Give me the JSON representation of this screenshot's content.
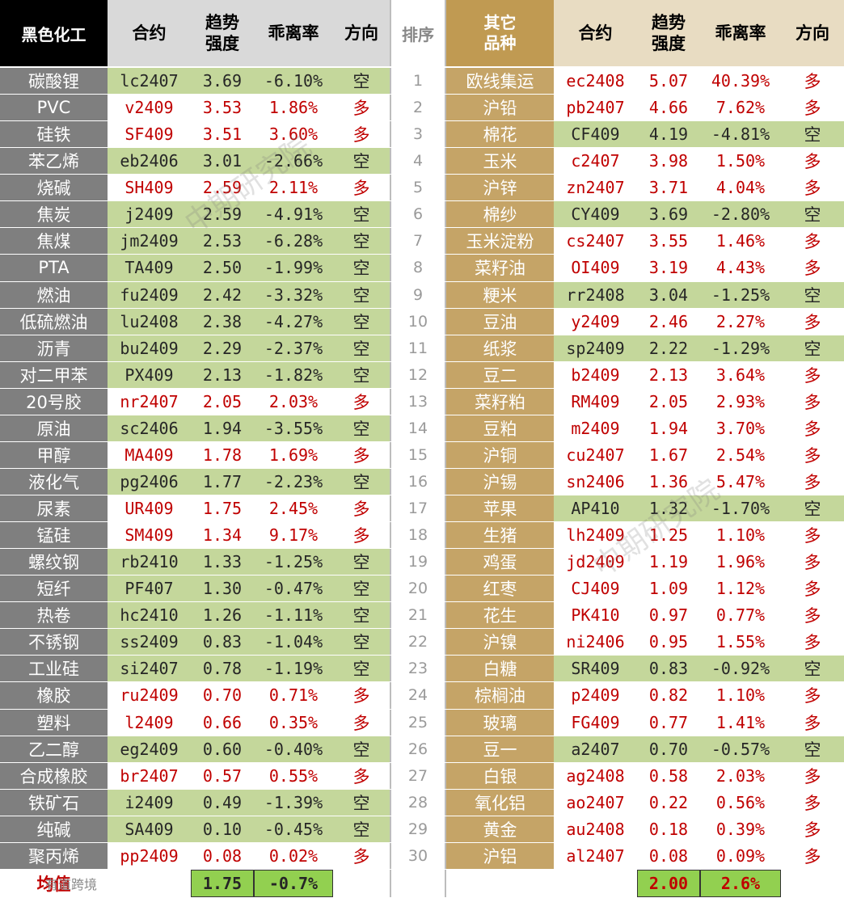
{
  "header": {
    "left_category": "黑色化工",
    "contract": "合约",
    "trend": "趋势\n强度",
    "deviation": "乖离率",
    "direction": "方向",
    "rank": "排序",
    "right_category": "其它\n品种"
  },
  "rows": [
    {
      "l": [
        "碳酸锂",
        "lc2407",
        "3.69",
        "-6.10%",
        "空"
      ],
      "lg": true,
      "rank": "1",
      "r": [
        "欧线集运",
        "ec2408",
        "5.07",
        "40.39%",
        "多"
      ],
      "rg": false
    },
    {
      "l": [
        "PVC",
        "v2409",
        "3.53",
        "1.86%",
        "多"
      ],
      "lg": false,
      "rank": "2",
      "r": [
        "沪铅",
        "pb2407",
        "4.66",
        "7.62%",
        "多"
      ],
      "rg": false
    },
    {
      "l": [
        "硅铁",
        "SF409",
        "3.51",
        "3.60%",
        "多"
      ],
      "lg": false,
      "rank": "3",
      "r": [
        "棉花",
        "CF409",
        "4.19",
        "-4.81%",
        "空"
      ],
      "rg": true
    },
    {
      "l": [
        "苯乙烯",
        "eb2406",
        "3.01",
        "-2.66%",
        "空"
      ],
      "lg": true,
      "rank": "4",
      "r": [
        "玉米",
        "c2407",
        "3.98",
        "1.50%",
        "多"
      ],
      "rg": false
    },
    {
      "l": [
        "烧碱",
        "SH409",
        "2.59",
        "2.11%",
        "多"
      ],
      "lg": false,
      "rank": "5",
      "r": [
        "沪锌",
        "zn2407",
        "3.71",
        "4.04%",
        "多"
      ],
      "rg": false
    },
    {
      "l": [
        "焦炭",
        "j2409",
        "2.59",
        "-4.91%",
        "空"
      ],
      "lg": true,
      "rank": "6",
      "r": [
        "棉纱",
        "CY409",
        "3.69",
        "-2.80%",
        "空"
      ],
      "rg": true
    },
    {
      "l": [
        "焦煤",
        "jm2409",
        "2.53",
        "-6.28%",
        "空"
      ],
      "lg": true,
      "rank": "7",
      "r": [
        "玉米淀粉",
        "cs2407",
        "3.55",
        "1.46%",
        "多"
      ],
      "rg": false
    },
    {
      "l": [
        "PTA",
        "TA409",
        "2.50",
        "-1.99%",
        "空"
      ],
      "lg": true,
      "rank": "8",
      "r": [
        "菜籽油",
        "OI409",
        "3.19",
        "4.43%",
        "多"
      ],
      "rg": false
    },
    {
      "l": [
        "燃油",
        "fu2409",
        "2.42",
        "-3.32%",
        "空"
      ],
      "lg": true,
      "rank": "9",
      "r": [
        "粳米",
        "rr2408",
        "3.04",
        "-1.25%",
        "空"
      ],
      "rg": true
    },
    {
      "l": [
        "低硫燃油",
        "lu2408",
        "2.38",
        "-4.27%",
        "空"
      ],
      "lg": true,
      "rank": "10",
      "r": [
        "豆油",
        "y2409",
        "2.46",
        "2.27%",
        "多"
      ],
      "rg": false
    },
    {
      "l": [
        "沥青",
        "bu2409",
        "2.29",
        "-2.37%",
        "空"
      ],
      "lg": true,
      "rank": "11",
      "r": [
        "纸浆",
        "sp2409",
        "2.22",
        "-1.29%",
        "空"
      ],
      "rg": true
    },
    {
      "l": [
        "对二甲苯",
        "PX409",
        "2.13",
        "-1.82%",
        "空"
      ],
      "lg": true,
      "rank": "12",
      "r": [
        "豆二",
        "b2409",
        "2.13",
        "3.64%",
        "多"
      ],
      "rg": false
    },
    {
      "l": [
        "20号胶",
        "nr2407",
        "2.05",
        "2.03%",
        "多"
      ],
      "lg": false,
      "rank": "13",
      "r": [
        "菜籽粕",
        "RM409",
        "2.05",
        "2.93%",
        "多"
      ],
      "rg": false
    },
    {
      "l": [
        "原油",
        "sc2406",
        "1.94",
        "-3.55%",
        "空"
      ],
      "lg": true,
      "rank": "14",
      "r": [
        "豆粕",
        "m2409",
        "1.94",
        "3.70%",
        "多"
      ],
      "rg": false
    },
    {
      "l": [
        "甲醇",
        "MA409",
        "1.78",
        "1.69%",
        "多"
      ],
      "lg": false,
      "rank": "15",
      "r": [
        "沪铜",
        "cu2407",
        "1.67",
        "2.54%",
        "多"
      ],
      "rg": false
    },
    {
      "l": [
        "液化气",
        "pg2406",
        "1.77",
        "-2.23%",
        "空"
      ],
      "lg": true,
      "rank": "16",
      "r": [
        "沪锡",
        "sn2406",
        "1.36",
        "5.47%",
        "多"
      ],
      "rg": false
    },
    {
      "l": [
        "尿素",
        "UR409",
        "1.75",
        "2.45%",
        "多"
      ],
      "lg": false,
      "rank": "17",
      "r": [
        "苹果",
        "AP410",
        "1.32",
        "-1.70%",
        "空"
      ],
      "rg": true
    },
    {
      "l": [
        "锰硅",
        "SM409",
        "1.34",
        "9.17%",
        "多"
      ],
      "lg": false,
      "rank": "18",
      "r": [
        "生猪",
        "lh2409",
        "1.25",
        "1.10%",
        "多"
      ],
      "rg": false
    },
    {
      "l": [
        "螺纹钢",
        "rb2410",
        "1.33",
        "-1.25%",
        "空"
      ],
      "lg": true,
      "rank": "19",
      "r": [
        "鸡蛋",
        "jd2409",
        "1.19",
        "1.96%",
        "多"
      ],
      "rg": false
    },
    {
      "l": [
        "短纤",
        "PF407",
        "1.30",
        "-0.47%",
        "空"
      ],
      "lg": true,
      "rank": "20",
      "r": [
        "红枣",
        "CJ409",
        "1.09",
        "1.12%",
        "多"
      ],
      "rg": false
    },
    {
      "l": [
        "热卷",
        "hc2410",
        "1.26",
        "-1.11%",
        "空"
      ],
      "lg": true,
      "rank": "21",
      "r": [
        "花生",
        "PK410",
        "0.97",
        "0.77%",
        "多"
      ],
      "rg": false
    },
    {
      "l": [
        "不锈钢",
        "ss2409",
        "0.83",
        "-1.04%",
        "空"
      ],
      "lg": true,
      "rank": "22",
      "r": [
        "沪镍",
        "ni2406",
        "0.95",
        "1.55%",
        "多"
      ],
      "rg": false
    },
    {
      "l": [
        "工业硅",
        "si2407",
        "0.78",
        "-1.19%",
        "空"
      ],
      "lg": true,
      "rank": "23",
      "r": [
        "白糖",
        "SR409",
        "0.83",
        "-0.92%",
        "空"
      ],
      "rg": true
    },
    {
      "l": [
        "橡胶",
        "ru2409",
        "0.70",
        "0.71%",
        "多"
      ],
      "lg": false,
      "rank": "24",
      "r": [
        "棕榈油",
        "p2409",
        "0.82",
        "1.10%",
        "多"
      ],
      "rg": false
    },
    {
      "l": [
        "塑料",
        "l2409",
        "0.66",
        "0.35%",
        "多"
      ],
      "lg": false,
      "rank": "25",
      "r": [
        "玻璃",
        "FG409",
        "0.77",
        "1.41%",
        "多"
      ],
      "rg": false
    },
    {
      "l": [
        "乙二醇",
        "eg2409",
        "0.60",
        "-0.40%",
        "空"
      ],
      "lg": true,
      "rank": "26",
      "r": [
        "豆一",
        "a2407",
        "0.70",
        "-0.57%",
        "空"
      ],
      "rg": true
    },
    {
      "l": [
        "合成橡胶",
        "br2407",
        "0.57",
        "0.55%",
        "多"
      ],
      "lg": false,
      "rank": "27",
      "r": [
        "白银",
        "ag2408",
        "0.58",
        "2.03%",
        "多"
      ],
      "rg": false
    },
    {
      "l": [
        "铁矿石",
        "i2409",
        "0.49",
        "-1.39%",
        "空"
      ],
      "lg": true,
      "rank": "28",
      "r": [
        "氧化铝",
        "ao2407",
        "0.22",
        "0.56%",
        "多"
      ],
      "rg": false
    },
    {
      "l": [
        "纯碱",
        "SA409",
        "0.10",
        "-0.45%",
        "空"
      ],
      "lg": true,
      "rank": "29",
      "r": [
        "黄金",
        "au2408",
        "0.18",
        "0.39%",
        "多"
      ],
      "rg": false
    },
    {
      "l": [
        "聚丙烯",
        "pp2409",
        "0.08",
        "0.02%",
        "多"
      ],
      "lg": false,
      "rank": "30",
      "r": [
        "沪铝",
        "al2407",
        "0.08",
        "0.09%",
        "多"
      ],
      "rg": false
    }
  ],
  "footer": {
    "label": "均值",
    "left_trend_avg": "1.75",
    "left_dev_avg": "-0.7%",
    "right_trend_avg": "2.00",
    "right_dev_avg": "2.6%"
  },
  "watermark": "中期研究院",
  "corner_logo": "有道跨境",
  "colors": {
    "green": "#c4d79b",
    "red": "#c00000",
    "gold": "#c5a467",
    "grey": "#7f7f7f",
    "avg_green": "#92d050"
  }
}
